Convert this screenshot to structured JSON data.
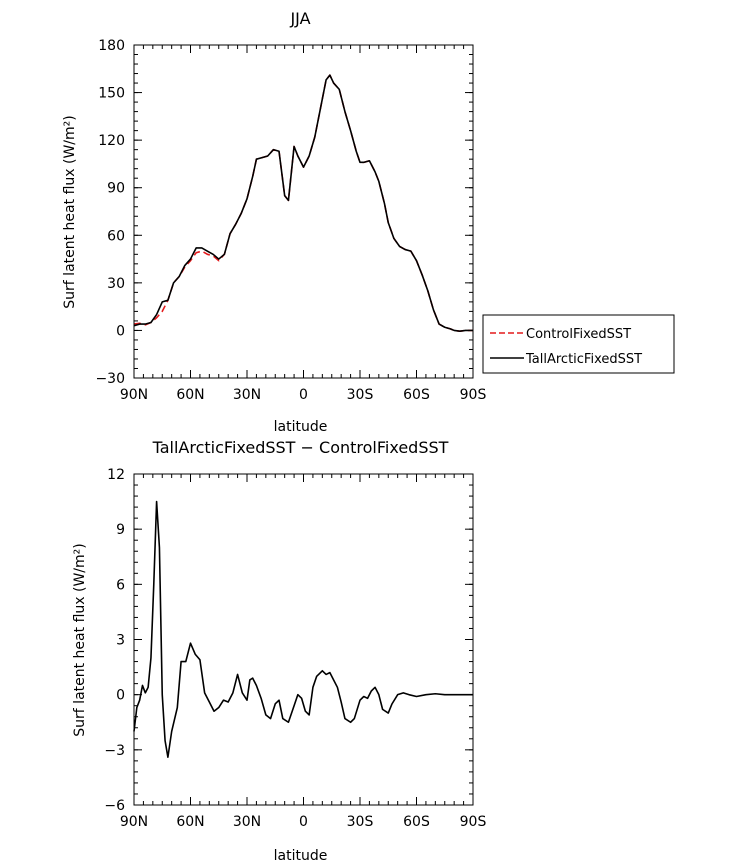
{
  "chart_data": [
    {
      "type": "line",
      "title": "JJA",
      "xlabel": "latitude",
      "ylabel": "Surf latent heat flux (W/m²)",
      "xlim": [
        90,
        -90
      ],
      "ylim": [
        -30,
        180
      ],
      "xticks": [
        {
          "value": 90,
          "label": "90N"
        },
        {
          "value": 60,
          "label": "60N"
        },
        {
          "value": 30,
          "label": "30N"
        },
        {
          "value": 0,
          "label": "0"
        },
        {
          "value": -30,
          "label": "30S"
        },
        {
          "value": -60,
          "label": "60S"
        },
        {
          "value": -90,
          "label": "90S"
        }
      ],
      "yticks": [
        {
          "value": 180,
          "label": "180"
        },
        {
          "value": 150,
          "label": "150"
        },
        {
          "value": 120,
          "label": "120"
        },
        {
          "value": 90,
          "label": "90"
        },
        {
          "value": 60,
          "label": "60"
        },
        {
          "value": 30,
          "label": "30"
        },
        {
          "value": 0,
          "label": "0"
        },
        {
          "value": -30,
          "label": "−30"
        }
      ],
      "legend_position": "right",
      "series": [
        {
          "name": "ControlFixedSST",
          "color": "#e41a1c",
          "dash": true,
          "points": [
            [
              90,
              4
            ],
            [
              87,
              4.5
            ],
            [
              84,
              3.5
            ],
            [
              81,
              5
            ],
            [
              78,
              8
            ],
            [
              75,
              12
            ],
            [
              72,
              19
            ],
            [
              69,
              30
            ],
            [
              66,
              34
            ],
            [
              63,
              40
            ],
            [
              60,
              44
            ],
            [
              57,
              49
            ],
            [
              54,
              50
            ],
            [
              51,
              48
            ],
            [
              48,
              47
            ],
            [
              45,
              44
            ],
            [
              42,
              48
            ],
            [
              39,
              61
            ],
            [
              36,
              67
            ],
            [
              33,
              74
            ],
            [
              30,
              83
            ],
            [
              27,
              97
            ],
            [
              25,
              108
            ],
            [
              22,
              109
            ],
            [
              19,
              110
            ],
            [
              16,
              114
            ],
            [
              13,
              113
            ],
            [
              10,
              85
            ],
            [
              8,
              82
            ],
            [
              5,
              116
            ],
            [
              3,
              110
            ],
            [
              0,
              103
            ],
            [
              -3,
              110
            ],
            [
              -6,
              122
            ],
            [
              -9,
              140
            ],
            [
              -12,
              158
            ],
            [
              -14,
              161
            ],
            [
              -16,
              156
            ],
            [
              -19,
              152
            ],
            [
              -22,
              138
            ],
            [
              -25,
              126
            ],
            [
              -28,
              113
            ],
            [
              -30,
              106
            ],
            [
              -32,
              106
            ],
            [
              -35,
              107
            ],
            [
              -38,
              100
            ],
            [
              -40,
              94
            ],
            [
              -43,
              80
            ],
            [
              -45,
              68
            ],
            [
              -48,
              58
            ],
            [
              -51,
              53
            ],
            [
              -54,
              51
            ],
            [
              -57,
              50
            ],
            [
              -60,
              44
            ],
            [
              -63,
              35
            ],
            [
              -66,
              25
            ],
            [
              -69,
              13
            ],
            [
              -72,
              4
            ],
            [
              -75,
              2
            ],
            [
              -78,
              1
            ],
            [
              -80,
              0
            ],
            [
              -83,
              -0.5
            ],
            [
              -86,
              0
            ],
            [
              -90,
              0
            ]
          ]
        },
        {
          "name": "TallArcticFixedSST",
          "color": "#000000",
          "dash": false,
          "points": [
            [
              90,
              3
            ],
            [
              87,
              4
            ],
            [
              84,
              4
            ],
            [
              81,
              5
            ],
            [
              78,
              10
            ],
            [
              75,
              18
            ],
            [
              72,
              19
            ],
            [
              69,
              30
            ],
            [
              66,
              34
            ],
            [
              63,
              41
            ],
            [
              60,
              45
            ],
            [
              57,
              52
            ],
            [
              54,
              52
            ],
            [
              51,
              50
            ],
            [
              48,
              48
            ],
            [
              45,
              45
            ],
            [
              42,
              48
            ],
            [
              39,
              61
            ],
            [
              36,
              67
            ],
            [
              33,
              74
            ],
            [
              30,
              83
            ],
            [
              27,
              97
            ],
            [
              25,
              108
            ],
            [
              22,
              109
            ],
            [
              19,
              110
            ],
            [
              16,
              114
            ],
            [
              13,
              113
            ],
            [
              10,
              85
            ],
            [
              8,
              82
            ],
            [
              5,
              116
            ],
            [
              3,
              110
            ],
            [
              0,
              103
            ],
            [
              -3,
              110
            ],
            [
              -6,
              122
            ],
            [
              -9,
              140
            ],
            [
              -12,
              158
            ],
            [
              -14,
              161
            ],
            [
              -16,
              156
            ],
            [
              -19,
              152
            ],
            [
              -22,
              138
            ],
            [
              -25,
              126
            ],
            [
              -28,
              113
            ],
            [
              -30,
              106
            ],
            [
              -32,
              106
            ],
            [
              -35,
              107
            ],
            [
              -38,
              100
            ],
            [
              -40,
              94
            ],
            [
              -43,
              80
            ],
            [
              -45,
              68
            ],
            [
              -48,
              58
            ],
            [
              -51,
              53
            ],
            [
              -54,
              51
            ],
            [
              -57,
              50
            ],
            [
              -60,
              44
            ],
            [
              -63,
              35
            ],
            [
              -66,
              25
            ],
            [
              -69,
              13
            ],
            [
              -72,
              4
            ],
            [
              -75,
              2
            ],
            [
              -78,
              1
            ],
            [
              -80,
              0
            ],
            [
              -83,
              -0.5
            ],
            [
              -86,
              0
            ],
            [
              -90,
              0
            ]
          ]
        }
      ]
    },
    {
      "type": "line",
      "title": "TallArcticFixedSST − ControlFixedSST",
      "xlabel": "latitude",
      "ylabel": "Surf latent heat flux (W/m²)",
      "xlim": [
        90,
        -90
      ],
      "ylim": [
        -6,
        12
      ],
      "xticks": [
        {
          "value": 90,
          "label": "90N"
        },
        {
          "value": 60,
          "label": "60N"
        },
        {
          "value": 30,
          "label": "30N"
        },
        {
          "value": 0,
          "label": "0"
        },
        {
          "value": -30,
          "label": "30S"
        },
        {
          "value": -60,
          "label": "60S"
        },
        {
          "value": -90,
          "label": "90S"
        }
      ],
      "yticks": [
        {
          "value": 12,
          "label": "12"
        },
        {
          "value": 9,
          "label": "9"
        },
        {
          "value": 6,
          "label": "6"
        },
        {
          "value": 3,
          "label": "3"
        },
        {
          "value": 0,
          "label": "0"
        },
        {
          "value": -3,
          "label": "−3"
        },
        {
          "value": -6,
          "label": "−6"
        }
      ],
      "series": [
        {
          "color": "#000000",
          "dash": false,
          "points": [
            [
              90,
              -2
            ],
            [
              88.5,
              -0.7
            ],
            [
              87,
              -0.3
            ],
            [
              85.5,
              0.5
            ],
            [
              84,
              0.1
            ],
            [
              82.5,
              0.4
            ],
            [
              81,
              2
            ],
            [
              79.5,
              6
            ],
            [
              78,
              10.5
            ],
            [
              76.5,
              8
            ],
            [
              75,
              0
            ],
            [
              73.5,
              -2.5
            ],
            [
              72,
              -3.4
            ],
            [
              70,
              -2
            ],
            [
              67,
              -0.7
            ],
            [
              65,
              1.8
            ],
            [
              62.5,
              1.8
            ],
            [
              60,
              2.8
            ],
            [
              57.5,
              2.2
            ],
            [
              55,
              1.9
            ],
            [
              52.5,
              0.1
            ],
            [
              50,
              -0.4
            ],
            [
              47.5,
              -0.9
            ],
            [
              45,
              -0.7
            ],
            [
              42.5,
              -0.3
            ],
            [
              40,
              -0.4
            ],
            [
              37.5,
              0.1
            ],
            [
              35,
              1.1
            ],
            [
              32.5,
              0.1
            ],
            [
              30,
              -0.3
            ],
            [
              28.5,
              0.8
            ],
            [
              27,
              0.9
            ],
            [
              25,
              0.5
            ],
            [
              22.5,
              -0.2
            ],
            [
              20,
              -1.1
            ],
            [
              17.5,
              -1.3
            ],
            [
              15,
              -0.5
            ],
            [
              13,
              -0.3
            ],
            [
              11,
              -1.3
            ],
            [
              8,
              -1.5
            ],
            [
              5,
              -0.6
            ],
            [
              3,
              0
            ],
            [
              1,
              -0.2
            ],
            [
              -1,
              -0.9
            ],
            [
              -3,
              -1.1
            ],
            [
              -5,
              0.4
            ],
            [
              -7,
              1
            ],
            [
              -10,
              1.3
            ],
            [
              -12,
              1.1
            ],
            [
              -14,
              1.2
            ],
            [
              -16,
              0.8
            ],
            [
              -18,
              0.4
            ],
            [
              -20,
              -0.4
            ],
            [
              -22,
              -1.3
            ],
            [
              -25,
              -1.5
            ],
            [
              -27,
              -1.3
            ],
            [
              -30,
              -0.3
            ],
            [
              -32,
              -0.1
            ],
            [
              -34,
              -0.2
            ],
            [
              -36,
              0.2
            ],
            [
              -38,
              0.4
            ],
            [
              -40,
              0
            ],
            [
              -42,
              -0.8
            ],
            [
              -45,
              -1
            ],
            [
              -47,
              -0.5
            ],
            [
              -50,
              0
            ],
            [
              -53,
              0.1
            ],
            [
              -56,
              0
            ],
            [
              -60,
              -0.1
            ],
            [
              -65,
              0
            ],
            [
              -70,
              0.05
            ],
            [
              -75,
              0
            ],
            [
              -80,
              0
            ],
            [
              -85,
              0
            ],
            [
              -90,
              0
            ]
          ]
        }
      ]
    }
  ]
}
